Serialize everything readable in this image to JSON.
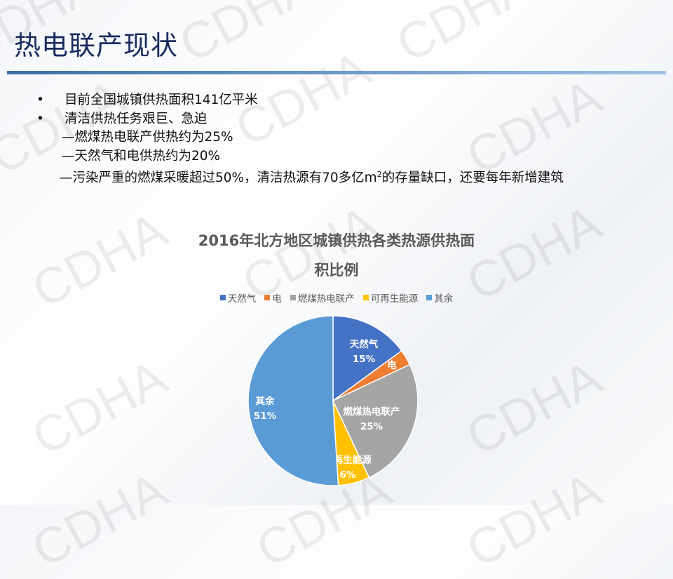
{
  "watermark": "CDHA",
  "title": "热电联产现状",
  "bullets": [
    {
      "marker": "•",
      "text": "目前全国城镇供热面积141亿平米"
    },
    {
      "marker": "•",
      "text": "清洁供热任务艰巨、急迫"
    }
  ],
  "sub_items": [
    "—燃煤热电联产供热约为25%",
    "—天然气和电供热约为20%"
  ],
  "last_item": {
    "pre": "—污染严重的燃煤采暖超过50%，清洁热源有70多亿m",
    "sup": "2",
    "post": "的存量缺口，还要每年新增建筑"
  },
  "chart_data": {
    "type": "pie",
    "title": "2016年北方地区城镇供热各类热源供热面积比例",
    "title_lines": [
      "2016年北方地区城镇供热各类热源供热面",
      "积比例"
    ],
    "legend_position": "top",
    "categories": [
      "天然气",
      "电",
      "燃煤热电联产",
      "可再生能源",
      "其余"
    ],
    "values": [
      15,
      3,
      25,
      6,
      51
    ],
    "labels": [
      "15%",
      "3%",
      "25%",
      "6%",
      "51%"
    ],
    "colors": [
      "#4472c4",
      "#ed7d31",
      "#a5a5a5",
      "#ffc000",
      "#5b9bd5"
    ]
  }
}
